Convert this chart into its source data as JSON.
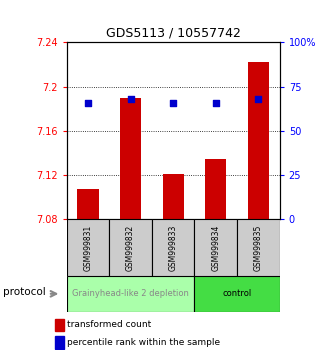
{
  "title": "GDS5113 / 10557742",
  "samples": [
    "GSM999831",
    "GSM999832",
    "GSM999833",
    "GSM999834",
    "GSM999835"
  ],
  "red_values": [
    7.108,
    7.19,
    7.121,
    7.135,
    7.222
  ],
  "blue_values": [
    66,
    68,
    66,
    66,
    68
  ],
  "ymin": 7.08,
  "ymax": 7.24,
  "y2min": 0,
  "y2max": 100,
  "yticks": [
    7.08,
    7.12,
    7.16,
    7.2,
    7.24
  ],
  "ytick_labels": [
    "7.08",
    "7.12",
    "7.16",
    "7.2",
    "7.24"
  ],
  "y2ticks": [
    0,
    25,
    50,
    75,
    100
  ],
  "y2tick_labels": [
    "0",
    "25",
    "50",
    "75",
    "100%"
  ],
  "groups": [
    {
      "label": "Grainyhead-like 2 depletion",
      "samples": [
        0,
        1,
        2
      ],
      "color": "#aaffaa",
      "text_color": "#888888"
    },
    {
      "label": "control",
      "samples": [
        3,
        4
      ],
      "color": "#44dd44",
      "text_color": "#000000"
    }
  ],
  "bar_color": "#cc0000",
  "dot_color": "#0000cc",
  "baseline": 7.08,
  "title_fontsize": 9,
  "tick_fontsize": 7,
  "sample_fontsize": 5.5,
  "group_fontsize": 6,
  "legend_fontsize": 6.5,
  "protocol_fontsize": 7.5,
  "bar_width": 0.5,
  "dot_size": 20
}
